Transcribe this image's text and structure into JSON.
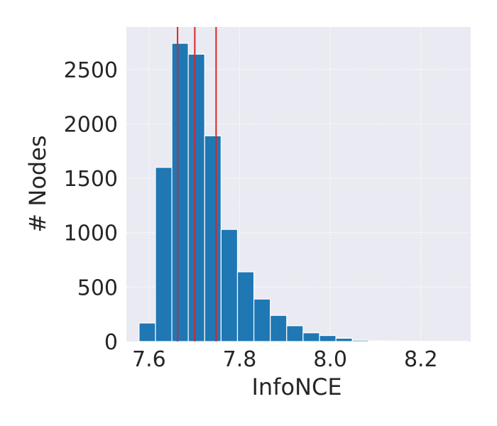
{
  "chart_data": {
    "type": "bar",
    "xlabel": "InfoNCE",
    "ylabel": "# Nodes",
    "xlim": [
      7.55,
      8.31
    ],
    "ylim": [
      0,
      2890
    ],
    "x_ticks": [
      7.6,
      7.8,
      8.0,
      8.2
    ],
    "x_tick_labels": [
      "7.6",
      "7.8",
      "8.0",
      "8.2"
    ],
    "y_ticks": [
      0,
      500,
      1000,
      1500,
      2000,
      2500
    ],
    "y_tick_labels": [
      "0",
      "500",
      "1000",
      "1500",
      "2000",
      "2500"
    ],
    "grid": true,
    "bar_color": "#1f77b4",
    "line_color": "#d62728",
    "plot_bg": "#eaeaf2",
    "bin_edges": [
      7.578,
      7.6142,
      7.6504,
      7.6866,
      7.7228,
      7.759,
      7.7952,
      7.8314,
      7.8676,
      7.9038,
      7.94,
      7.9762,
      8.0124,
      8.0486,
      8.0848,
      8.121,
      8.1572,
      8.1934,
      8.2296,
      8.2658,
      8.302
    ],
    "values": [
      170,
      1600,
      2740,
      2640,
      1890,
      1030,
      640,
      390,
      240,
      145,
      80,
      55,
      30,
      12,
      6,
      4,
      2,
      1,
      1,
      1
    ],
    "vertical_lines": [
      7.663,
      7.701,
      7.748
    ]
  }
}
